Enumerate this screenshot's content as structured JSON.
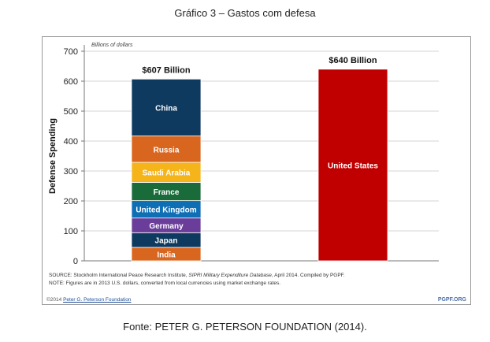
{
  "page_title": "Gráfico 3 – Gastos com defesa",
  "caption": "Fonte: PETER G. PETERSON FOUNDATION (2014).",
  "footer": {
    "copyright": "©2014 ",
    "link_text": "Peter G. Peterson Foundation",
    "site": "PGPF.ORG"
  },
  "chart_data": {
    "type": "bar",
    "subtype": "stacked",
    "title": "",
    "units_label": "Billions of dollars",
    "ylabel": "Defense Spending",
    "ylim": [
      0,
      700
    ],
    "yticks": [
      "0",
      "100",
      "200",
      "300",
      "400",
      "500",
      "600",
      "700"
    ],
    "grid": true,
    "stacks": [
      {
        "total_label": "$607 Billion",
        "segments": [
          {
            "name": "India",
            "value": 45,
            "color": "#d9661f"
          },
          {
            "name": "Japan",
            "value": 49,
            "color": "#0e3a5f"
          },
          {
            "name": "Germany",
            "value": 49,
            "color": "#6a3d9a"
          },
          {
            "name": "United Kingdom",
            "value": 58,
            "color": "#0f6fb5"
          },
          {
            "name": "France",
            "value": 61,
            "color": "#1a6b3a"
          },
          {
            "name": "Saudi Arabia",
            "value": 67,
            "color": "#f4b41a"
          },
          {
            "name": "Russia",
            "value": 88,
            "color": "#d9661f"
          },
          {
            "name": "China",
            "value": 190,
            "color": "#0e3a5f"
          }
        ]
      },
      {
        "total_label": "$640 Billion",
        "segments": [
          {
            "name": "United States",
            "value": 640,
            "color": "#c00000"
          }
        ]
      }
    ],
    "source_note": "Stockholm International Peace Research Institute, ",
    "source_prefix": "SOURCE: ",
    "source_italic": "SIPRI Military Expenditure Database",
    "source_suffix": ", April 2014. Compiled by PGPF.",
    "note": "NOTE: Figures are in 2013 U.S. dollars, converted from local currencies using market exchange rates."
  }
}
